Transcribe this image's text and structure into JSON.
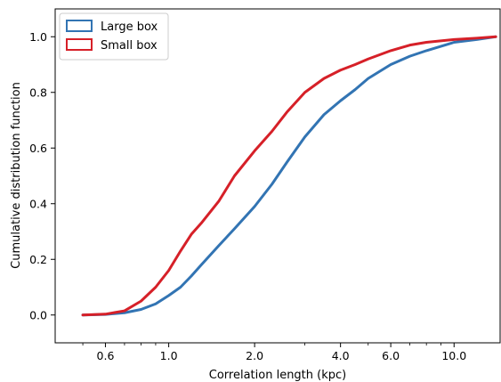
{
  "chart_data": {
    "type": "line",
    "xlabel": "Correlation length (kpc)",
    "ylabel": "Cumulative distribution function",
    "x_scale": "log",
    "xlim": [
      0.4,
      14.5
    ],
    "ylim": [
      -0.1,
      1.1
    ],
    "x_ticks": [
      {
        "value": 0.6,
        "label": "0.6"
      },
      {
        "value": 1.0,
        "label": "1.0"
      },
      {
        "value": 2.0,
        "label": "2.0"
      },
      {
        "value": 4.0,
        "label": "4.0"
      },
      {
        "value": 6.0,
        "label": "6.0"
      },
      {
        "value": 10.0,
        "label": "10.0"
      }
    ],
    "x_minor_ticks": [
      0.5,
      0.7,
      0.8,
      0.9,
      3.0,
      5.0,
      7.0,
      8.0,
      9.0
    ],
    "y_ticks": [
      {
        "value": 0.0,
        "label": "0.0"
      },
      {
        "value": 0.2,
        "label": "0.2"
      },
      {
        "value": 0.4,
        "label": "0.4"
      },
      {
        "value": 0.6,
        "label": "0.6"
      },
      {
        "value": 0.8,
        "label": "0.8"
      },
      {
        "value": 1.0,
        "label": "1.0"
      }
    ],
    "grid": false,
    "legend": "top-left",
    "series": [
      {
        "name": "Large box",
        "color": "#3274b3",
        "points": [
          [
            0.5,
            0.0
          ],
          [
            0.6,
            0.002
          ],
          [
            0.7,
            0.008
          ],
          [
            0.8,
            0.02
          ],
          [
            0.9,
            0.04
          ],
          [
            1.0,
            0.07
          ],
          [
            1.1,
            0.1
          ],
          [
            1.2,
            0.14
          ],
          [
            1.3,
            0.18
          ],
          [
            1.5,
            0.25
          ],
          [
            1.7,
            0.31
          ],
          [
            2.0,
            0.39
          ],
          [
            2.3,
            0.47
          ],
          [
            2.6,
            0.55
          ],
          [
            3.0,
            0.64
          ],
          [
            3.5,
            0.72
          ],
          [
            4.0,
            0.77
          ],
          [
            4.5,
            0.81
          ],
          [
            5.0,
            0.85
          ],
          [
            6.0,
            0.9
          ],
          [
            7.0,
            0.93
          ],
          [
            8.0,
            0.95
          ],
          [
            10.0,
            0.98
          ],
          [
            12.0,
            0.99
          ],
          [
            14.0,
            1.0
          ]
        ]
      },
      {
        "name": "Small box",
        "color": "#d62028",
        "points": [
          [
            0.5,
            0.0
          ],
          [
            0.6,
            0.003
          ],
          [
            0.7,
            0.015
          ],
          [
            0.8,
            0.05
          ],
          [
            0.9,
            0.1
          ],
          [
            1.0,
            0.16
          ],
          [
            1.1,
            0.23
          ],
          [
            1.2,
            0.29
          ],
          [
            1.3,
            0.33
          ],
          [
            1.5,
            0.41
          ],
          [
            1.7,
            0.5
          ],
          [
            2.0,
            0.59
          ],
          [
            2.3,
            0.66
          ],
          [
            2.6,
            0.73
          ],
          [
            3.0,
            0.8
          ],
          [
            3.5,
            0.85
          ],
          [
            4.0,
            0.88
          ],
          [
            4.5,
            0.9
          ],
          [
            5.0,
            0.92
          ],
          [
            6.0,
            0.95
          ],
          [
            7.0,
            0.97
          ],
          [
            8.0,
            0.98
          ],
          [
            10.0,
            0.99
          ],
          [
            12.0,
            0.995
          ],
          [
            14.0,
            1.0
          ]
        ]
      }
    ]
  }
}
